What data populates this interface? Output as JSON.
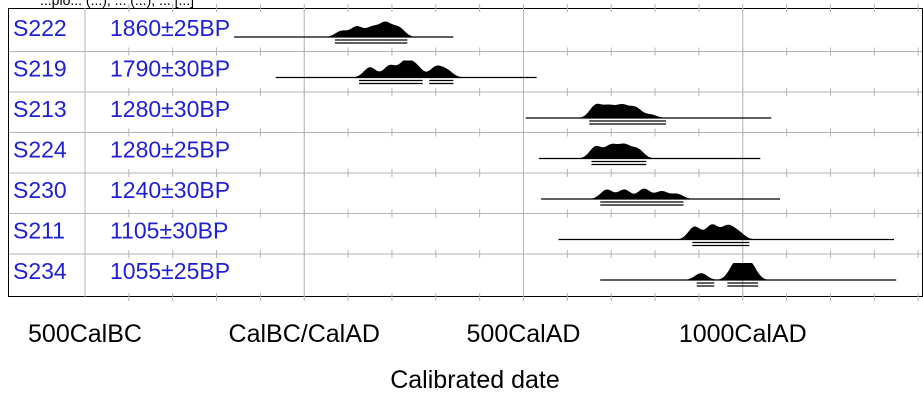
{
  "header_text": "...plo... (...), ... (...), ... [...]",
  "chart_data": {
    "type": "multiplot",
    "xlabel": "Calibrated date",
    "x_range": [
      -500,
      1400
    ],
    "x_ticks_major": [
      {
        "value": -500,
        "label": "500CalBC"
      },
      {
        "value": 0,
        "label": "CalBC/CalAD"
      },
      {
        "value": 500,
        "label": "500CalAD"
      },
      {
        "value": 1000,
        "label": "1000CalAD"
      }
    ],
    "grid": true,
    "colors": {
      "label": "#1f1fd6",
      "ink": "#000000",
      "grid": "#b5b5b5"
    },
    "series": [
      {
        "name": "S222",
        "age": "1860±25BP",
        "line_range": [
          -160,
          340
        ],
        "peaks": [
          [
            85,
            0.35
          ],
          [
            120,
            0.6
          ],
          [
            155,
            0.55
          ],
          [
            185,
            0.8
          ],
          [
            215,
            0.55
          ]
        ],
        "hpd": [
          [
            70,
            235
          ]
        ]
      },
      {
        "name": "S219",
        "age": "1790±30BP",
        "line_range": [
          -65,
          530
        ],
        "peaks": [
          [
            150,
            0.6
          ],
          [
            195,
            0.7
          ],
          [
            230,
            0.9
          ],
          [
            255,
            0.65
          ],
          [
            300,
            0.6
          ],
          [
            325,
            0.4
          ]
        ],
        "hpd": [
          [
            125,
            270
          ],
          [
            285,
            340
          ]
        ]
      },
      {
        "name": "S213",
        "age": "1280±30BP",
        "line_range": [
          505,
          1065
        ],
        "peaks": [
          [
            665,
            0.75
          ],
          [
            695,
            0.65
          ],
          [
            725,
            0.7
          ],
          [
            755,
            0.6
          ],
          [
            790,
            0.2
          ]
        ],
        "hpd": [
          [
            650,
            825
          ]
        ]
      },
      {
        "name": "S224",
        "age": "1280±25BP",
        "line_range": [
          535,
          1040
        ],
        "peaks": [
          [
            665,
            0.7
          ],
          [
            700,
            0.75
          ],
          [
            730,
            0.75
          ],
          [
            760,
            0.55
          ]
        ],
        "hpd": [
          [
            655,
            780
          ]
        ]
      },
      {
        "name": "S230",
        "age": "1240±30BP",
        "line_range": [
          540,
          1085
        ],
        "peaks": [
          [
            690,
            0.55
          ],
          [
            730,
            0.55
          ],
          [
            775,
            0.6
          ],
          [
            815,
            0.45
          ],
          [
            850,
            0.3
          ]
        ],
        "hpd": [
          [
            675,
            865
          ]
        ]
      },
      {
        "name": "S211",
        "age": "1105±30BP",
        "line_range": [
          580,
          1345
        ],
        "peaks": [
          [
            890,
            0.75
          ],
          [
            930,
            0.85
          ],
          [
            965,
            0.75
          ],
          [
            990,
            0.4
          ]
        ],
        "hpd": [
          [
            885,
            1015
          ]
        ]
      },
      {
        "name": "S234",
        "age": "1055±25BP",
        "line_range": [
          675,
          1350
        ],
        "peaks": [
          [
            905,
            0.4
          ],
          [
            980,
            0.7
          ],
          [
            1000,
            1.0
          ],
          [
            1020,
            0.7
          ]
        ],
        "hpd": [
          [
            895,
            935
          ],
          [
            965,
            1035
          ]
        ]
      }
    ]
  }
}
